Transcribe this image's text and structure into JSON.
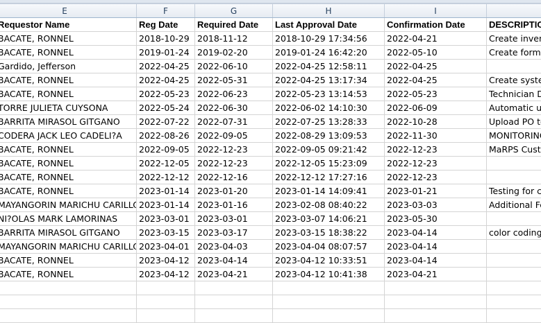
{
  "columns": [
    "E",
    "F",
    "G",
    "H",
    "I",
    ""
  ],
  "headers": [
    "Requestor Name",
    "Reg Date",
    "Required Date",
    "Last Approval Date",
    "Confirmation Date",
    "DESCRIPTION"
  ],
  "rows": [
    [
      "BACATE, RONNEL",
      "2018-10-29",
      "2018-11-12",
      "2018-10-29 17:34:56",
      "2022-04-21",
      "Create inventory"
    ],
    [
      "BACATE, RONNEL",
      "2019-01-24",
      "2019-02-20",
      "2019-01-24 16:42:20",
      "2022-05-10",
      "Create form"
    ],
    [
      "Gardido, Jefferson",
      "2022-04-25",
      "2022-06-10",
      "2022-04-25 12:58:11",
      "2022-04-25",
      ""
    ],
    [
      "BACATE, RONNEL",
      "2022-04-25",
      "2022-05-31",
      "2022-04-25 13:17:34",
      "2022-04-25",
      "Create system"
    ],
    [
      "BACATE, RONNEL",
      "2022-05-23",
      "2022-06-23",
      "2022-05-23 13:14:53",
      "2022-05-23",
      "Technician D"
    ],
    [
      "TORRE JULIETA CUYSONA",
      "2022-05-24",
      "2022-06-30",
      "2022-06-02 14:10:30",
      "2022-06-09",
      "Automatic u"
    ],
    [
      "BARRITA MIRASOL GITGANO",
      "2022-07-22",
      "2022-07-31",
      "2022-07-25 13:28:33",
      "2022-10-28",
      "Upload PO to"
    ],
    [
      "CODERA JACK LEO CADELI?A",
      "2022-08-26",
      "2022-09-05",
      "2022-08-29 13:09:53",
      "2022-11-30",
      "MONITORING"
    ],
    [
      "BACATE, RONNEL",
      "2022-09-05",
      "2022-12-23",
      "2022-09-05 09:21:42",
      "2022-12-23",
      "MaRPS Custo"
    ],
    [
      "BACATE, RONNEL",
      "2022-12-05",
      "2022-12-23",
      "2022-12-05 15:23:09",
      "2022-12-23",
      ""
    ],
    [
      "BACATE, RONNEL",
      "2022-12-12",
      "2022-12-16",
      "2022-12-12 17:27:16",
      "2022-12-23",
      ""
    ],
    [
      "BACATE, RONNEL",
      "2023-01-14",
      "2023-01-20",
      "2023-01-14 14:09:41",
      "2023-01-21",
      "Testing for c"
    ],
    [
      "MAYANGORIN MARICHU CARILLO",
      "2023-01-14",
      "2023-01-16",
      "2023-02-08 08:40:22",
      "2023-03-03",
      "Additional Fe"
    ],
    [
      "NI?OLAS MARK LAMORINAS",
      "2023-03-01",
      "2023-03-01",
      "2023-03-07 14:06:21",
      "2023-05-30",
      ""
    ],
    [
      "BARRITA MIRASOL GITGANO",
      "2023-03-15",
      "2023-03-17",
      "2023-03-15 18:38:22",
      "2023-04-14",
      "color coding"
    ],
    [
      "MAYANGORIN MARICHU CARILLO",
      "2023-04-01",
      "2023-04-03",
      "2023-04-04 08:07:57",
      "2023-04-14",
      ""
    ],
    [
      "BACATE, RONNEL",
      "2023-04-12",
      "2023-04-14",
      "2023-04-12 10:33:51",
      "2023-04-14",
      ""
    ],
    [
      "BACATE, RONNEL",
      "2023-04-12",
      "2023-04-21",
      "2023-04-12 10:41:38",
      "2023-04-21",
      ""
    ],
    [
      "",
      "",
      "",
      "",
      "",
      ""
    ],
    [
      "",
      "",
      "",
      "",
      "",
      ""
    ],
    [
      "",
      "",
      "",
      "",
      "",
      ""
    ]
  ]
}
